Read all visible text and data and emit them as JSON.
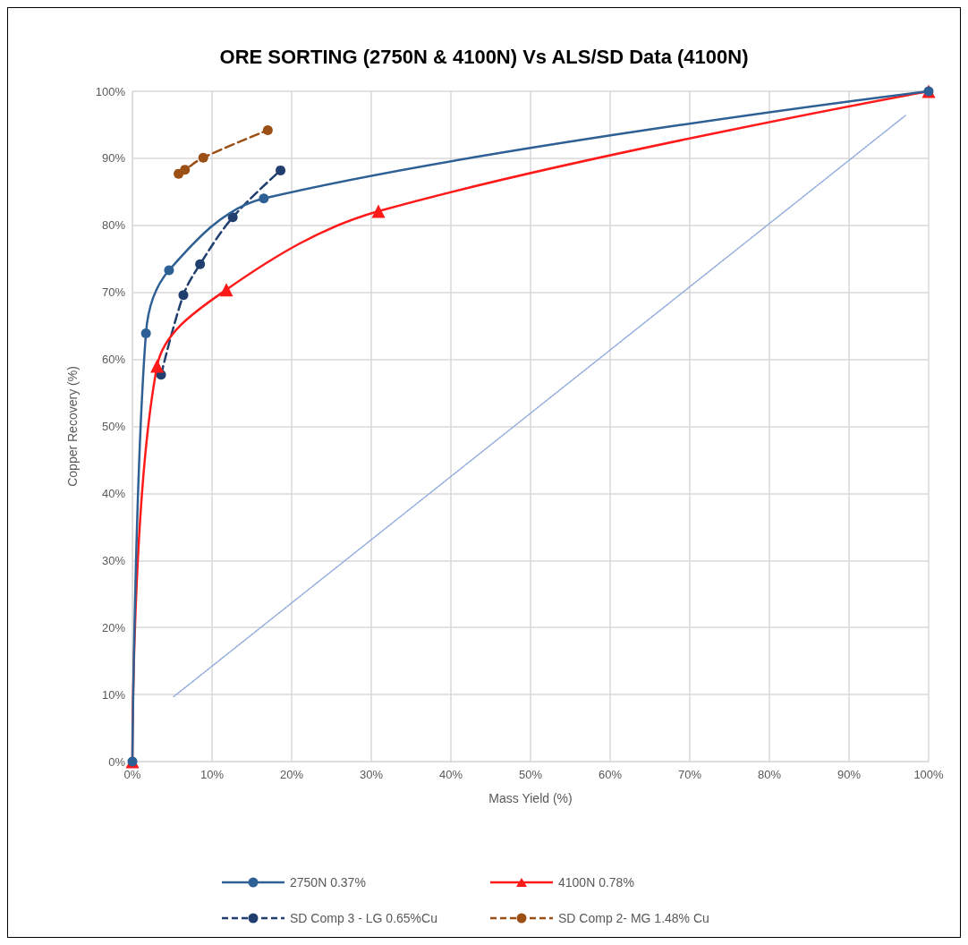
{
  "chart_data": {
    "type": "line",
    "title": "ORE SORTING (2750N & 4100N) Vs ALS/SD Data (4100N)",
    "xlabel": "Mass Yield (%)",
    "ylabel": "Copper Recovery (%)",
    "xlim": [
      0,
      100
    ],
    "ylim": [
      0,
      100
    ],
    "xticks": [
      {
        "value": 0,
        "label": "0%"
      },
      {
        "value": 10,
        "label": "10%"
      },
      {
        "value": 20,
        "label": "20%"
      },
      {
        "value": 30,
        "label": "30%"
      },
      {
        "value": 40,
        "label": "40%"
      },
      {
        "value": 50,
        "label": "50%"
      },
      {
        "value": 60,
        "label": "60%"
      },
      {
        "value": 70,
        "label": "70%"
      },
      {
        "value": 80,
        "label": "80%"
      },
      {
        "value": 90,
        "label": "90%"
      },
      {
        "value": 100,
        "label": "100%"
      }
    ],
    "yticks": [
      {
        "value": 0,
        "label": "0%"
      },
      {
        "value": 10,
        "label": "10%"
      },
      {
        "value": 20,
        "label": "20%"
      },
      {
        "value": 30,
        "label": "30%"
      },
      {
        "value": 40,
        "label": "40%"
      },
      {
        "value": 50,
        "label": "50%"
      },
      {
        "value": 60,
        "label": "60%"
      },
      {
        "value": 70,
        "label": "70%"
      },
      {
        "value": 80,
        "label": "80%"
      },
      {
        "value": 90,
        "label": "90%"
      },
      {
        "value": 100,
        "label": "100%"
      }
    ],
    "grid": true,
    "legend": "bottom",
    "series": [
      {
        "name": "2750N 0.37%",
        "color": "#2e6095",
        "marker": "circle",
        "line_style": "solid",
        "x": [
          0,
          1.7,
          4.6,
          16.5,
          100
        ],
        "values": [
          0,
          63.9,
          73.3,
          84.0,
          100
        ]
      },
      {
        "name": "4100N 0.78%",
        "color": "#ff1a1a",
        "marker": "triangle",
        "line_style": "solid",
        "x": [
          0,
          3.1,
          11.8,
          30.9,
          100
        ],
        "values": [
          0,
          59.0,
          70.4,
          82.1,
          100
        ]
      },
      {
        "name": "SD Comp 3 - LG 0.65%Cu",
        "color": "#203e6e",
        "marker": "circle",
        "line_style": "dashed",
        "x": [
          3.6,
          6.4,
          8.5,
          12.6,
          18.6
        ],
        "values": [
          57.7,
          69.6,
          74.2,
          81.2,
          88.2
        ]
      },
      {
        "name": "SD Comp 2- MG 1.48% Cu",
        "color": "#9c4f14",
        "marker": "circle",
        "line_style": "dashed",
        "x": [
          5.8,
          6.6,
          8.9,
          17.0
        ],
        "values": [
          87.7,
          88.3,
          90.1,
          94.2
        ]
      },
      {
        "color": "#8faadc",
        "marker": "none",
        "line_style": "dotted",
        "x": [
          5.2,
          97.1
        ],
        "values": [
          9.7,
          96.4
        ]
      }
    ]
  }
}
